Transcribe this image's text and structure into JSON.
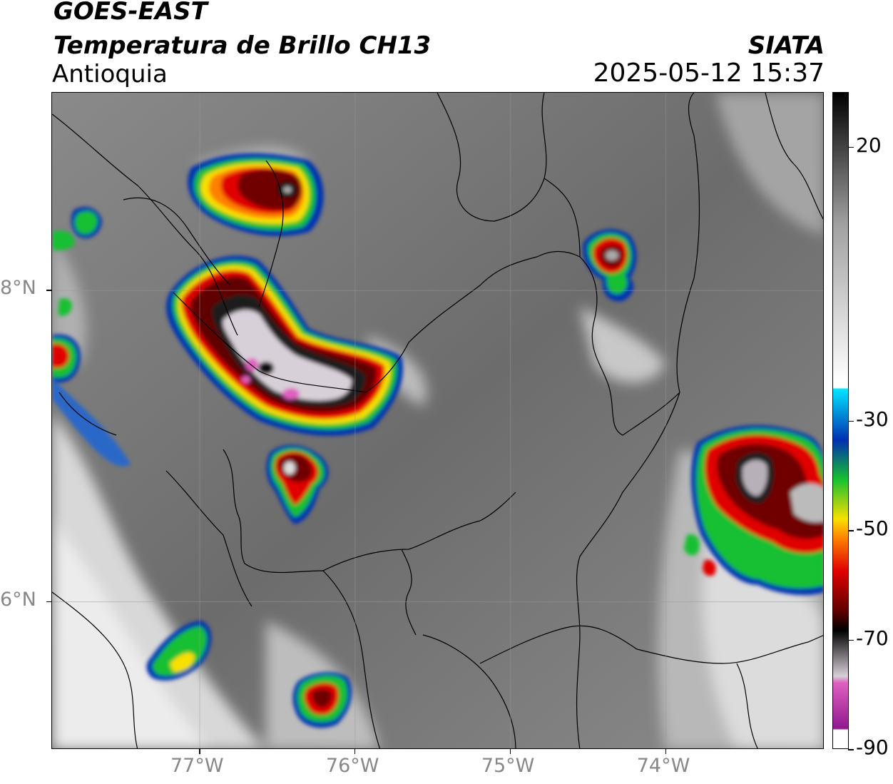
{
  "header": {
    "satellite": "GOES-EAST",
    "product": "Temperatura de Brillo CH13",
    "region": "Antioquia",
    "organization": "SIATA",
    "datetime": "2025-05-12 15:37"
  },
  "map": {
    "lon_range": [
      -77.95,
      -72.98
    ],
    "lat_range": [
      5.05,
      9.27
    ],
    "lon_labels": [
      "77°W",
      "76°W",
      "75°W",
      "74°W"
    ],
    "lat_labels": [
      "8°N",
      "6°N"
    ],
    "lon_values": [
      -77,
      -76,
      -75,
      -74
    ],
    "lat_values": [
      8,
      6
    ]
  },
  "colorbar": {
    "unit_note": "",
    "ticks": [
      "20",
      "-30",
      "-50",
      "-70",
      "-90"
    ],
    "tick_values": [
      20,
      -30,
      -50,
      -70,
      -90
    ],
    "range": [
      -90,
      30
    ],
    "colors": {
      "warm": "#000000",
      "gray": "#a0a0a0",
      "white": "#ffffff",
      "cyan": "#00e5ff",
      "blue": "#0030b0",
      "green": "#18c030",
      "yellow": "#f8e000",
      "orange": "#ff8000",
      "red": "#e00000",
      "darkred": "#600000",
      "black": "#000000",
      "lightgray": "#d8d0d8",
      "pink": "#e060c0",
      "purple": "#901890"
    }
  }
}
